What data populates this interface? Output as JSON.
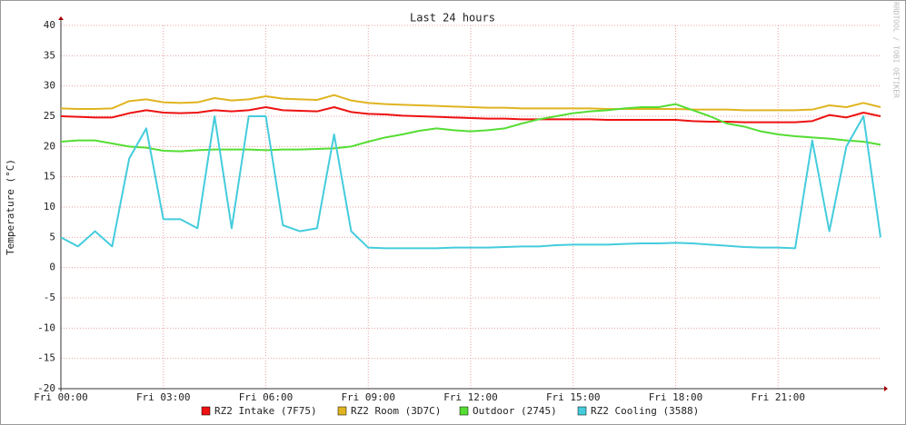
{
  "chart_data": {
    "type": "line",
    "title": "Last 24 hours",
    "y_label": "Temperature (°C)",
    "side_note": "RRDTOOL / TOBI OETIKER",
    "x": [
      0,
      0.5,
      1,
      1.5,
      2,
      2.5,
      3,
      3.5,
      4,
      4.5,
      5,
      5.5,
      6,
      6.5,
      7,
      7.5,
      8,
      8.5,
      9,
      9.5,
      10,
      10.5,
      11,
      11.5,
      12,
      12.5,
      13,
      13.5,
      14,
      14.5,
      15,
      15.5,
      16,
      16.5,
      17,
      17.5,
      18,
      18.5,
      19,
      19.5,
      20,
      20.5,
      21,
      21.5,
      22,
      22.5,
      23,
      23.5,
      24
    ],
    "xlim": [
      0,
      24
    ],
    "xticks": [
      {
        "value": 0,
        "label": "Fri 00:00"
      },
      {
        "value": 3,
        "label": "Fri 03:00"
      },
      {
        "value": 6,
        "label": "Fri 06:00"
      },
      {
        "value": 9,
        "label": "Fri 09:00"
      },
      {
        "value": 12,
        "label": "Fri 12:00"
      },
      {
        "value": 15,
        "label": "Fri 15:00"
      },
      {
        "value": 18,
        "label": "Fri 18:00"
      },
      {
        "value": 21,
        "label": "Fri 21:00"
      }
    ],
    "ylim": [
      -20,
      40
    ],
    "yticks": [
      -20,
      -15,
      -10,
      -5,
      0,
      5,
      10,
      15,
      20,
      25,
      30,
      35,
      40
    ],
    "grid": true,
    "series": [
      {
        "name": "RZ2 Intake (7F75)",
        "color": "#ee1111",
        "values": [
          25,
          24.9,
          24.8,
          24.8,
          25.5,
          26,
          25.6,
          25.5,
          25.6,
          26,
          25.8,
          26,
          26.5,
          26,
          25.9,
          25.8,
          26.5,
          25.7,
          25.4,
          25.3,
          25.1,
          25,
          24.9,
          24.8,
          24.7,
          24.6,
          24.6,
          24.5,
          24.5,
          24.5,
          24.5,
          24.5,
          24.4,
          24.4,
          24.4,
          24.4,
          24.4,
          24.2,
          24.1,
          24.1,
          24,
          24,
          24,
          24,
          24.2,
          25.2,
          24.8,
          25.6,
          25
        ]
      },
      {
        "name": "RZ2 Room (3D7C)",
        "color": "#e0b420",
        "values": [
          26.3,
          26.2,
          26.2,
          26.3,
          27.5,
          27.8,
          27.3,
          27.2,
          27.3,
          28,
          27.6,
          27.8,
          28.3,
          27.9,
          27.8,
          27.7,
          28.5,
          27.6,
          27.2,
          27,
          26.9,
          26.8,
          26.7,
          26.6,
          26.5,
          26.4,
          26.4,
          26.3,
          26.3,
          26.3,
          26.3,
          26.3,
          26.2,
          26.2,
          26.2,
          26.2,
          26.2,
          26.1,
          26.1,
          26.1,
          26,
          26,
          26,
          26,
          26.1,
          26.8,
          26.5,
          27.2,
          26.5
        ]
      },
      {
        "name": "Outdoor (2745)",
        "color": "#55dd33",
        "values": [
          20.8,
          21,
          21,
          20.5,
          20,
          19.8,
          19.3,
          19.2,
          19.4,
          19.5,
          19.5,
          19.5,
          19.4,
          19.5,
          19.5,
          19.6,
          19.7,
          20,
          20.8,
          21.5,
          22,
          22.6,
          23,
          22.7,
          22.5,
          22.7,
          23,
          23.8,
          24.5,
          25,
          25.5,
          25.8,
          26,
          26.3,
          26.5,
          26.5,
          27,
          26,
          25,
          23.8,
          23.3,
          22.5,
          22,
          21.7,
          21.5,
          21.3,
          21,
          20.8,
          20.3
        ]
      },
      {
        "name": "RZ2 Cooling (3588)",
        "color": "#44ccdd",
        "values": [
          5,
          3.5,
          6,
          3.5,
          18,
          23,
          8,
          8,
          6.5,
          25,
          6.5,
          25,
          25,
          7,
          6,
          6.5,
          22,
          6,
          3.3,
          3.2,
          3.2,
          3.2,
          3.2,
          3.3,
          3.3,
          3.3,
          3.4,
          3.5,
          3.5,
          3.7,
          3.8,
          3.8,
          3.8,
          3.9,
          4,
          4,
          4.1,
          4,
          3.8,
          3.6,
          3.4,
          3.3,
          3.3,
          3.2,
          21,
          6,
          20,
          25,
          5
        ]
      }
    ]
  }
}
